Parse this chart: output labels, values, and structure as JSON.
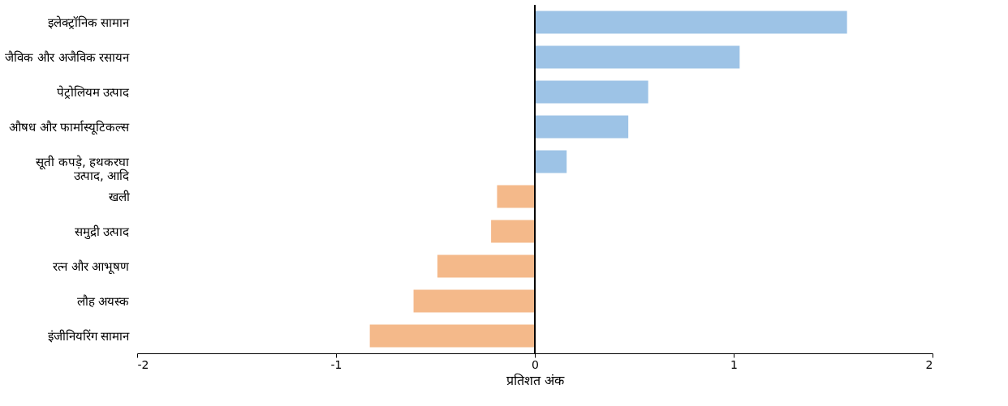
{
  "chart_data": {
    "type": "bar",
    "orientation": "horizontal",
    "xlabel": "प्रतिशत अंक",
    "categories": [
      "इलेक्ट्रॉनिक सामान",
      "जैविक और अजैविक रसायन",
      "पेट्रोलियम उत्पाद",
      "औषध और फार्मास्यूटिकल्स",
      "सूती कपड़े, हथकरघा\nउत्पाद, आदि",
      "खली",
      "समुद्री उत्पाद",
      "रत्न और आभूषण",
      "लौह अयस्क",
      "इंजीनियरिंग सामान"
    ],
    "values": [
      1.57,
      1.03,
      0.57,
      0.47,
      0.16,
      -0.19,
      -0.22,
      -0.49,
      -0.61,
      -0.83
    ],
    "colors": [
      "#9dc3e6",
      "#9dc3e6",
      "#9dc3e6",
      "#9dc3e6",
      "#9dc3e6",
      "#f4b98a",
      "#f4b98a",
      "#f4b98a",
      "#f4b98a",
      "#f4b98a"
    ],
    "xlim": [
      -2,
      2
    ],
    "xticks": [
      -2,
      -1,
      0,
      1,
      2
    ],
    "ref_lines": [
      {
        "axis": "x",
        "value": 0,
        "color": "#000000"
      }
    ]
  }
}
